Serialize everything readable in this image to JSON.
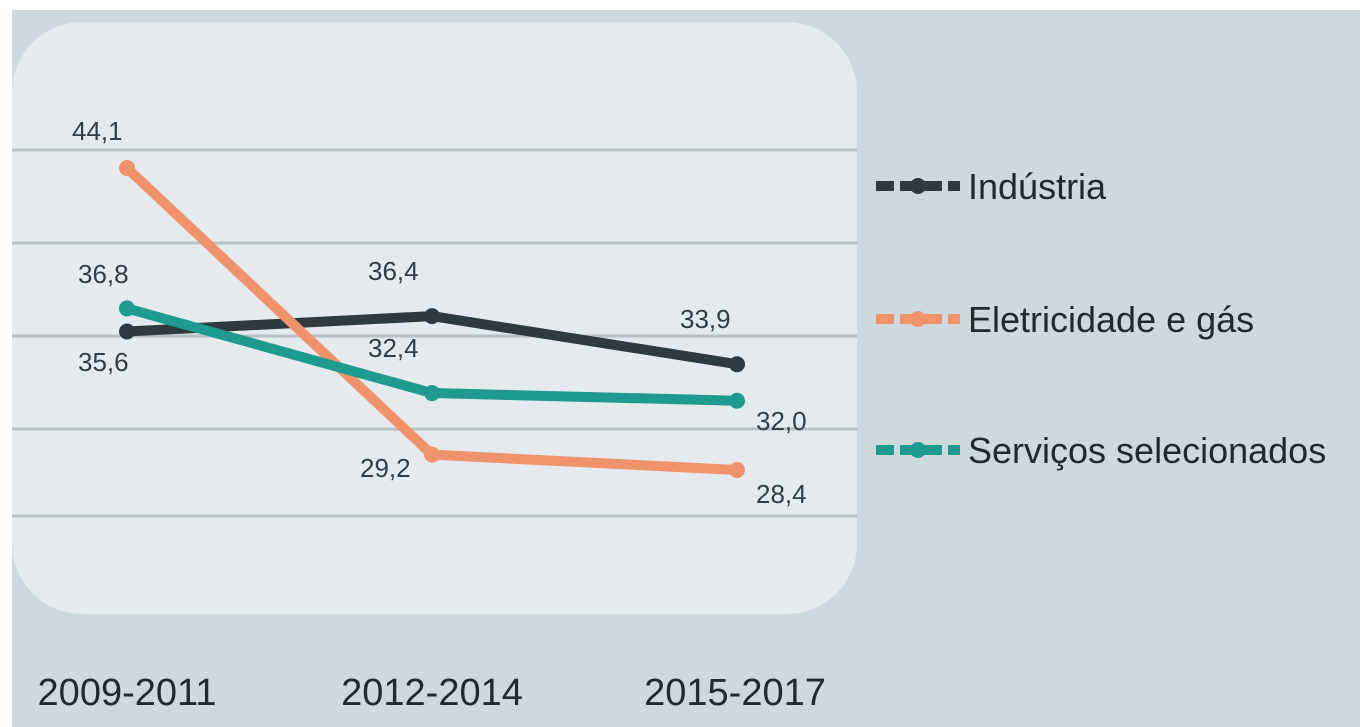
{
  "chart_data": {
    "type": "line",
    "categories": [
      "2009-2011",
      "2012-2014",
      "2015-2017"
    ],
    "series": [
      {
        "name": "Indústria",
        "values": [
          35.6,
          36.4,
          33.9
        ],
        "labels": [
          "35,6",
          "36,4",
          "33,9"
        ],
        "color": "#2f3a40"
      },
      {
        "name": "Eletricidade e gás",
        "values": [
          44.1,
          29.2,
          28.4
        ],
        "labels": [
          "44,1",
          "29,2",
          "28,4"
        ],
        "color": "#f0926b"
      },
      {
        "name": "Serviços selecionados",
        "values": [
          36.8,
          32.4,
          32.0
        ],
        "labels": [
          "36,8",
          "32,4",
          "32,0"
        ],
        "color": "#1f9a8e"
      }
    ],
    "ylim": [
      25,
      47
    ],
    "grid": true,
    "legend_position": "right",
    "colors": {
      "background": "#cdd9dd",
      "plot_panel": "#e4eaed",
      "gridline": "#b7c3c8"
    }
  }
}
